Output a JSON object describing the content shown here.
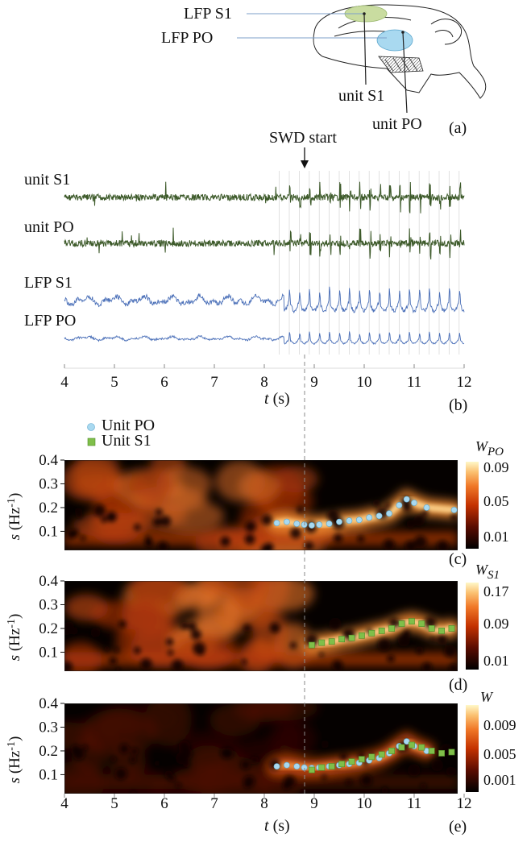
{
  "colors": {
    "unit_trace": "#3d5a2a",
    "lfp_trace": "#4a6fb8",
    "po_marker": "#a9d9f0",
    "s1_marker": "#7fbf4a",
    "s1_region": "#c9dca0",
    "po_region": "#a9d9f0"
  },
  "panel_a": {
    "label": "(a)",
    "lfp_s1": "LFP S1",
    "lfp_po": "LFP PO",
    "unit_s1": "unit S1",
    "unit_po": "unit PO"
  },
  "panel_b": {
    "label": "(b)",
    "swd_label": "SWD start",
    "traces": [
      "unit S1",
      "unit PO",
      "LFP S1",
      "LFP PO"
    ],
    "xlabel_var": "t",
    "xlabel_unit": " (s)",
    "xticks": [
      "4",
      "5",
      "6",
      "7",
      "8",
      "9",
      "10",
      "11",
      "12"
    ]
  },
  "legend": {
    "po": "Unit PO",
    "s1": "Unit S1"
  },
  "ylabel": {
    "var": "s",
    "unit": " (Hz",
    "exp": "-1",
    "close": ")"
  },
  "yticks": [
    "0.4",
    "0.3",
    "0.2",
    "0.1"
  ],
  "bottom_xlabel": {
    "var": "t",
    "unit": " (s)"
  },
  "chart_data": [
    {
      "type": "line",
      "panel": "(b)",
      "series": [
        {
          "name": "unit S1"
        },
        {
          "name": "unit PO"
        },
        {
          "name": "LFP S1"
        },
        {
          "name": "LFP PO"
        }
      ],
      "xlabel": "t (s)",
      "xlim": [
        4,
        12
      ],
      "annotations": [
        {
          "text": "SWD start",
          "x": 8.9
        }
      ]
    },
    {
      "type": "heatmap",
      "panel": "(c)",
      "colorbar_title": "W",
      "colorbar_subscript": "PO",
      "colorbar_ticks": [
        "0.09",
        "0.05",
        "0.01"
      ],
      "xlim": [
        4,
        12
      ],
      "ylim": [
        0.02,
        0.4
      ],
      "series": [
        {
          "name": "Unit PO",
          "marker": "circle",
          "x": [
            8.25,
            8.45,
            8.65,
            8.8,
            8.95,
            9.1,
            9.3,
            9.5,
            9.7,
            9.9,
            10.1,
            10.3,
            10.5,
            10.7,
            10.85,
            11.0,
            11.25,
            11.8
          ],
          "y": [
            0.135,
            0.14,
            0.132,
            0.128,
            0.125,
            0.128,
            0.132,
            0.14,
            0.145,
            0.148,
            0.158,
            0.165,
            0.175,
            0.21,
            0.235,
            0.22,
            0.2,
            0.19
          ]
        }
      ]
    },
    {
      "type": "heatmap",
      "panel": "(d)",
      "colorbar_title": "W",
      "colorbar_subscript": "S1",
      "colorbar_ticks": [
        "0.17",
        "0.09",
        "0.01"
      ],
      "xlim": [
        4,
        12
      ],
      "ylim": [
        0.02,
        0.4
      ],
      "series": [
        {
          "name": "Unit S1",
          "marker": "square",
          "x": [
            8.95,
            9.15,
            9.35,
            9.55,
            9.75,
            9.95,
            10.15,
            10.35,
            10.55,
            10.75,
            10.95,
            11.15,
            11.35,
            11.55,
            11.75
          ],
          "y": [
            0.13,
            0.14,
            0.145,
            0.155,
            0.16,
            0.17,
            0.18,
            0.19,
            0.2,
            0.22,
            0.23,
            0.22,
            0.2,
            0.19,
            0.2
          ]
        }
      ]
    },
    {
      "type": "heatmap",
      "panel": "(e)",
      "colorbar_title": "W",
      "colorbar_subscript": "",
      "colorbar_ticks": [
        "0.009",
        "0.005",
        "0.001"
      ],
      "xlim": [
        4,
        12
      ],
      "ylim": [
        0.02,
        0.4
      ],
      "series": [
        {
          "name": "Unit PO",
          "marker": "circle",
          "x": [
            8.25,
            8.45,
            8.65,
            8.8,
            8.95,
            9.1,
            9.3,
            9.5,
            9.7,
            9.9,
            10.1,
            10.3,
            10.5,
            10.7,
            10.85,
            11.0,
            11.25
          ],
          "y": [
            0.135,
            0.14,
            0.135,
            0.13,
            0.128,
            0.13,
            0.135,
            0.14,
            0.145,
            0.15,
            0.16,
            0.17,
            0.19,
            0.22,
            0.24,
            0.22,
            0.2
          ]
        },
        {
          "name": "Unit S1",
          "marker": "square",
          "x": [
            8.95,
            9.15,
            9.35,
            9.55,
            9.75,
            9.95,
            10.15,
            10.35,
            10.55,
            10.75,
            10.95,
            11.15,
            11.35,
            11.55,
            11.75
          ],
          "y": [
            0.12,
            0.13,
            0.135,
            0.145,
            0.155,
            0.165,
            0.175,
            0.185,
            0.2,
            0.215,
            0.225,
            0.215,
            0.2,
            0.19,
            0.195
          ]
        }
      ]
    }
  ]
}
